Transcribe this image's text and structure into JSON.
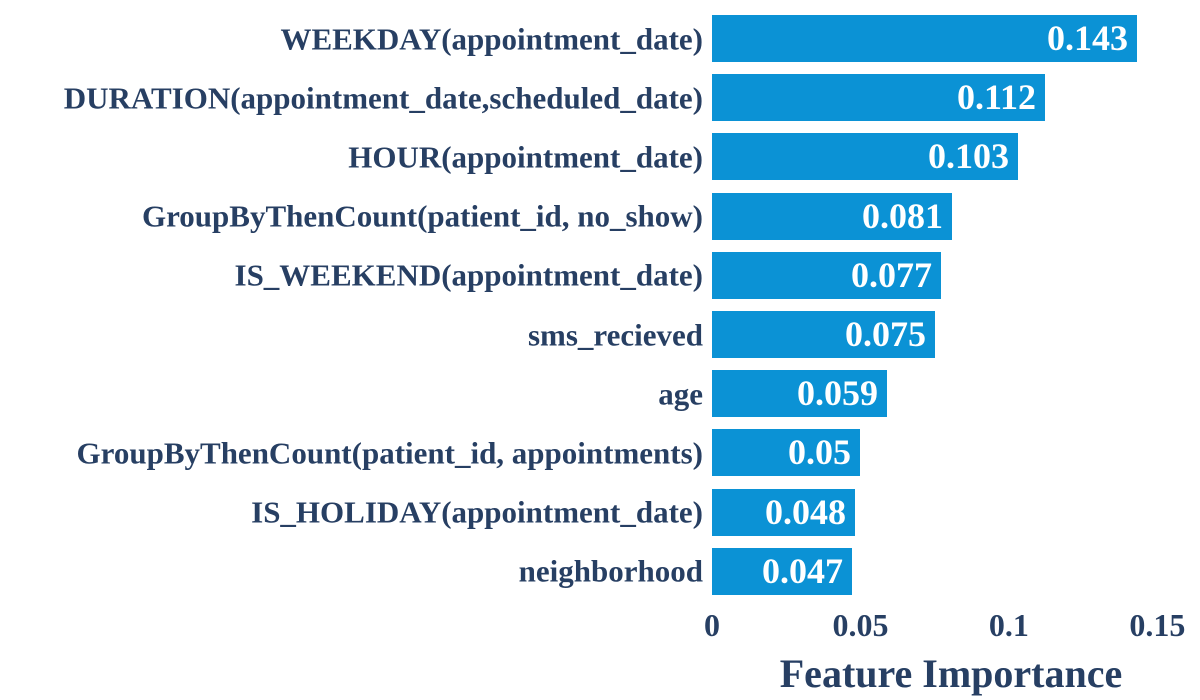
{
  "chart_data": {
    "type": "bar",
    "orientation": "horizontal",
    "title": "",
    "xlabel": "Feature Importance",
    "ylabel": "",
    "categories": [
      "WEEKDAY(appointment_date)",
      "DURATION(appointment_date,scheduled_date)",
      "HOUR(appointment_date)",
      "GroupByThenCount(patient_id, no_show)",
      "IS_WEEKEND(appointment_date)",
      "sms_recieved",
      "age",
      "GroupByThenCount(patient_id, appointments)",
      "IS_HOLIDAY(appointment_date)",
      "neighborhood"
    ],
    "values": [
      0.143,
      0.112,
      0.103,
      0.081,
      0.077,
      0.075,
      0.059,
      0.05,
      0.048,
      0.047
    ],
    "value_labels": [
      "0.143",
      "0.112",
      "0.103",
      "0.081",
      "0.077",
      "0.075",
      "0.059",
      "0.05",
      "0.048",
      "0.047"
    ],
    "xticks": [
      0,
      0.05,
      0.1,
      0.15
    ],
    "xtick_labels": [
      "0",
      "0.05",
      "0.1",
      "0.15"
    ],
    "xlim": [
      0,
      0.161
    ],
    "grid": false,
    "legend": null,
    "bar_color": "#0b92d5",
    "label_color": "#273f63",
    "value_text_color": "#ffffff",
    "background_color": "#ffffff"
  }
}
